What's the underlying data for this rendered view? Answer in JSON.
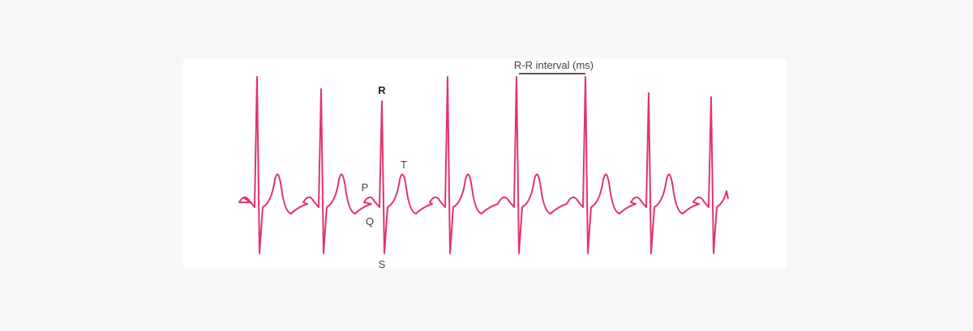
{
  "labels": {
    "r": "R",
    "t": "T",
    "p": "P",
    "q": "Q",
    "s": "S"
  },
  "interval_label": "R-R interval (ms)"
}
